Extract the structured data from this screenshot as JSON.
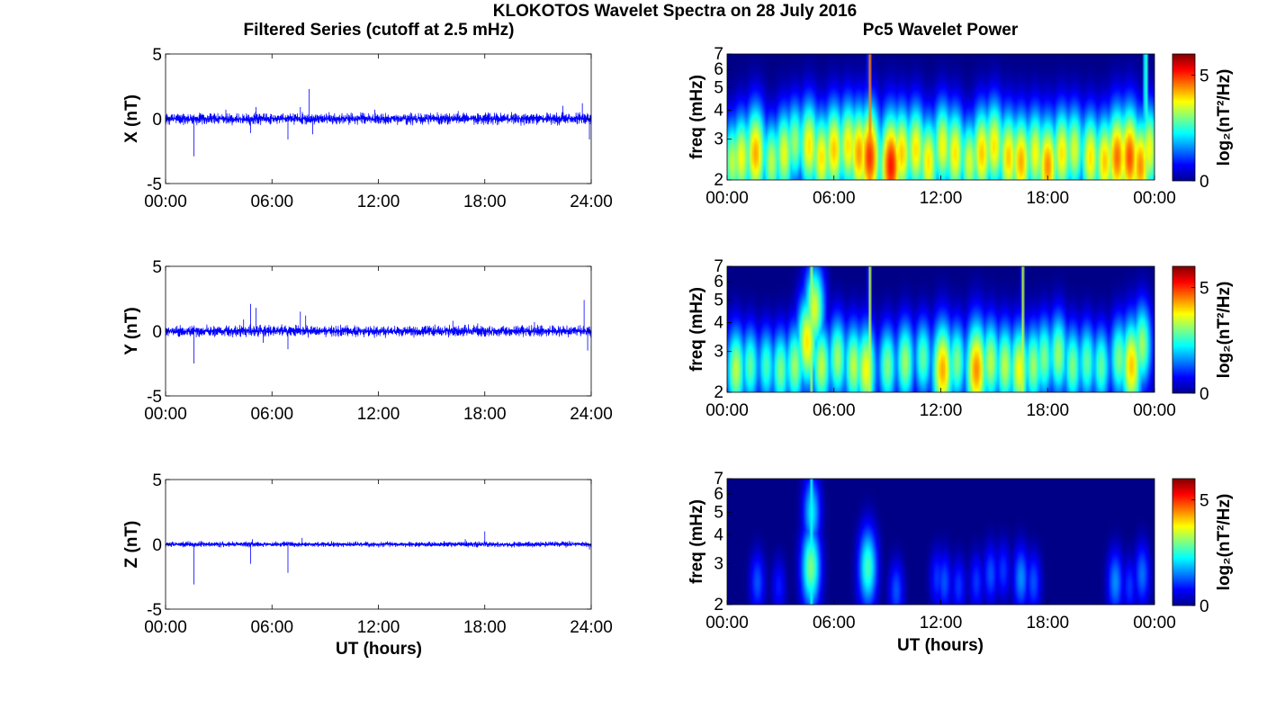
{
  "figure": {
    "title": "KLOKOTOS Wavelet Spectra on 28 July 2016",
    "left_title": "Filtered Series (cutoff at 2.5 mHz)",
    "right_title": "Pc5 Wavelet Power",
    "xlabel": "UT (hours)"
  },
  "chart_data": [
    {
      "type": "line",
      "panel": "X",
      "ylabel": "X (nT)",
      "xlim": [
        0,
        24
      ],
      "ylim": [
        -5,
        5
      ],
      "xticks": [
        "00:00",
        "06:00",
        "12:00",
        "18:00",
        "24:00"
      ],
      "yticks": [
        "-5",
        "0",
        "5"
      ],
      "color": "#0000ff",
      "background_amplitude": 0.25,
      "spikes": [
        [
          1.6,
          -2.9
        ],
        [
          3.4,
          0.7
        ],
        [
          4.8,
          -1.1
        ],
        [
          5.1,
          0.9
        ],
        [
          6.9,
          -1.6
        ],
        [
          7.6,
          0.9
        ],
        [
          8.1,
          2.3
        ],
        [
          8.3,
          -1.2
        ],
        [
          11.8,
          0.7
        ],
        [
          16.5,
          0.6
        ],
        [
          18.2,
          0.5
        ],
        [
          22.4,
          1.0
        ],
        [
          23.5,
          1.2
        ],
        [
          23.9,
          -1.6
        ]
      ]
    },
    {
      "type": "line",
      "panel": "Y",
      "ylabel": "Y (nT)",
      "xlim": [
        0,
        24
      ],
      "ylim": [
        -5,
        5
      ],
      "xticks": [
        "00:00",
        "06:00",
        "12:00",
        "18:00",
        "24:00"
      ],
      "yticks": [
        "-5",
        "0",
        "5"
      ],
      "color": "#0000ff",
      "background_amplitude": 0.25,
      "spikes": [
        [
          1.6,
          -2.5
        ],
        [
          4.4,
          0.9
        ],
        [
          4.8,
          2.1
        ],
        [
          5.1,
          1.8
        ],
        [
          5.5,
          -0.9
        ],
        [
          6.9,
          -1.4
        ],
        [
          7.6,
          1.5
        ],
        [
          7.9,
          1.2
        ],
        [
          16.2,
          0.8
        ],
        [
          17.6,
          0.6
        ],
        [
          20.8,
          0.7
        ],
        [
          23.6,
          2.4
        ],
        [
          23.8,
          -1.5
        ]
      ]
    },
    {
      "type": "line",
      "panel": "Z",
      "ylabel": "Z (nT)",
      "xlim": [
        0,
        24
      ],
      "ylim": [
        -5,
        5
      ],
      "xticks": [
        "00:00",
        "06:00",
        "12:00",
        "18:00",
        "24:00"
      ],
      "yticks": [
        "-5",
        "0",
        "5"
      ],
      "color": "#0000ff",
      "background_amplitude": 0.12,
      "spikes": [
        [
          1.6,
          -3.1
        ],
        [
          4.8,
          -1.5
        ],
        [
          4.9,
          0.4
        ],
        [
          6.9,
          -2.2
        ],
        [
          7.7,
          0.5
        ],
        [
          16.9,
          0.4
        ],
        [
          18.0,
          1.0
        ],
        [
          23.9,
          -0.4
        ]
      ]
    },
    {
      "type": "heatmap",
      "panel": "X",
      "ylabel": "freq (mHz)",
      "xlim": [
        0,
        24
      ],
      "ylim": [
        2,
        7
      ],
      "yscale": "log",
      "xticks": [
        "00:00",
        "06:00",
        "12:00",
        "18:00",
        "00:00"
      ],
      "yticks": [
        "2",
        "3",
        "4",
        "5",
        "6",
        "7"
      ],
      "colorbar": {
        "label": "log₂(nT²/Hz)",
        "range": [
          0,
          6
        ],
        "ticks": [
          "0",
          "5"
        ],
        "colormap": "jet"
      },
      "blobs": [
        [
          0.3,
          2.4,
          3.8
        ],
        [
          0.8,
          2.5,
          4.2
        ],
        [
          1.6,
          2.6,
          4.8
        ],
        [
          2.5,
          2.4,
          3.8
        ],
        [
          3.2,
          2.6,
          4.1
        ],
        [
          3.8,
          2.9,
          3.6
        ],
        [
          4.6,
          2.8,
          4.4
        ],
        [
          5.3,
          2.5,
          4.4
        ],
        [
          6.0,
          2.7,
          4.6
        ],
        [
          6.8,
          2.8,
          4.4
        ],
        [
          7.4,
          2.6,
          4.9
        ],
        [
          8.0,
          2.5,
          5.6
        ],
        [
          9.2,
          2.3,
          5.8
        ],
        [
          9.8,
          2.6,
          4.6
        ],
        [
          10.6,
          2.7,
          4.4
        ],
        [
          11.3,
          2.4,
          4.4
        ],
        [
          12.1,
          2.8,
          4.2
        ],
        [
          12.8,
          2.6,
          4.4
        ],
        [
          13.6,
          2.4,
          4.0
        ],
        [
          14.3,
          2.6,
          4.6
        ],
        [
          15.0,
          2.8,
          4.4
        ],
        [
          15.8,
          2.5,
          4.6
        ],
        [
          16.5,
          2.4,
          4.8
        ],
        [
          17.3,
          2.6,
          4.2
        ],
        [
          18.0,
          2.3,
          5.0
        ],
        [
          18.8,
          2.6,
          4.4
        ],
        [
          19.5,
          2.7,
          4.0
        ],
        [
          20.4,
          2.5,
          4.4
        ],
        [
          21.2,
          2.4,
          4.6
        ],
        [
          21.9,
          2.5,
          5.2
        ],
        [
          22.6,
          2.5,
          5.4
        ],
        [
          23.2,
          2.3,
          5.0
        ],
        [
          23.7,
          2.7,
          4.2
        ]
      ],
      "streaks": [
        [
          8.0,
          5.4
        ],
        [
          23.5,
          4.6
        ]
      ]
    },
    {
      "type": "heatmap",
      "panel": "Y",
      "ylabel": "freq (mHz)",
      "xlim": [
        0,
        24
      ],
      "ylim": [
        2,
        7
      ],
      "yscale": "log",
      "xticks": [
        "00:00",
        "06:00",
        "12:00",
        "18:00",
        "00:00"
      ],
      "yticks": [
        "2",
        "3",
        "4",
        "5",
        "6",
        "7"
      ],
      "colorbar": {
        "label": "log₂(nT²/Hz)",
        "range": [
          0,
          6
        ],
        "ticks": [
          "0",
          "5"
        ],
        "colormap": "jet"
      },
      "blobs": [
        [
          0.5,
          2.5,
          3.8
        ],
        [
          1.3,
          2.6,
          3.2
        ],
        [
          2.2,
          2.6,
          3.0
        ],
        [
          3.0,
          2.5,
          3.4
        ],
        [
          3.8,
          2.6,
          3.6
        ],
        [
          4.5,
          3.3,
          4.4
        ],
        [
          4.9,
          4.6,
          4.0
        ],
        [
          5.3,
          2.6,
          3.8
        ],
        [
          6.2,
          2.8,
          3.6
        ],
        [
          7.1,
          2.6,
          3.8
        ],
        [
          7.8,
          2.5,
          4.2
        ],
        [
          9.0,
          2.6,
          3.4
        ],
        [
          10.0,
          2.7,
          3.6
        ],
        [
          11.0,
          2.8,
          3.2
        ],
        [
          12.1,
          2.5,
          4.8
        ],
        [
          12.9,
          2.7,
          3.4
        ],
        [
          14.0,
          2.5,
          5.0
        ],
        [
          14.8,
          2.7,
          3.8
        ],
        [
          15.6,
          2.6,
          3.8
        ],
        [
          16.4,
          2.5,
          4.2
        ],
        [
          17.2,
          2.6,
          3.6
        ],
        [
          17.8,
          2.8,
          3.4
        ],
        [
          18.6,
          2.9,
          3.6
        ],
        [
          19.4,
          2.6,
          3.4
        ],
        [
          20.2,
          2.7,
          3.2
        ],
        [
          21.0,
          2.6,
          3.2
        ],
        [
          22.0,
          2.8,
          3.4
        ],
        [
          22.7,
          2.6,
          4.6
        ],
        [
          23.3,
          3.2,
          3.6
        ]
      ],
      "streaks": [
        [
          4.7,
          4.4
        ],
        [
          8.0,
          4.0
        ],
        [
          16.6,
          3.8
        ]
      ]
    },
    {
      "type": "heatmap",
      "panel": "Z",
      "ylabel": "freq (mHz)",
      "xlim": [
        0,
        24
      ],
      "ylim": [
        2,
        7
      ],
      "yscale": "log",
      "xticks": [
        "00:00",
        "06:00",
        "12:00",
        "18:00",
        "00:00"
      ],
      "yticks": [
        "2",
        "3",
        "4",
        "5",
        "6",
        "7"
      ],
      "colorbar": {
        "label": "log₂(nT²/Hz)",
        "range": [
          0,
          6
        ],
        "ticks": [
          "0",
          "5"
        ],
        "colormap": "jet"
      },
      "blobs": [
        [
          1.7,
          2.5,
          1.4
        ],
        [
          2.9,
          2.4,
          1.0
        ],
        [
          4.7,
          2.9,
          3.4
        ],
        [
          4.75,
          5.0,
          2.4
        ],
        [
          7.6,
          2.5,
          1.2
        ],
        [
          7.9,
          2.9,
          3.0
        ],
        [
          9.5,
          2.3,
          1.4
        ],
        [
          11.8,
          2.6,
          1.2
        ],
        [
          12.2,
          2.5,
          1.4
        ],
        [
          13.0,
          2.4,
          1.2
        ],
        [
          14.0,
          2.5,
          1.2
        ],
        [
          14.8,
          2.7,
          1.4
        ],
        [
          15.5,
          2.8,
          1.2
        ],
        [
          16.5,
          2.6,
          1.8
        ],
        [
          17.2,
          2.5,
          1.4
        ],
        [
          21.8,
          2.5,
          1.8
        ],
        [
          22.6,
          2.4,
          1.2
        ],
        [
          23.3,
          2.7,
          1.6
        ]
      ],
      "streaks": [
        [
          4.75,
          2.6
        ]
      ]
    }
  ]
}
